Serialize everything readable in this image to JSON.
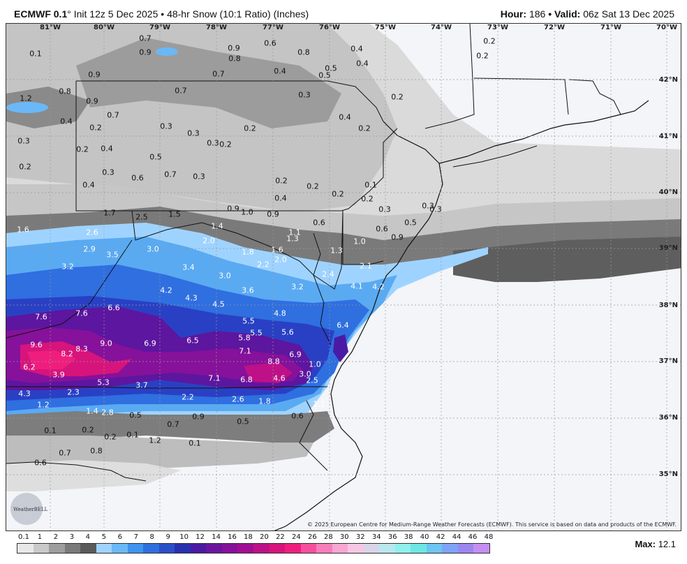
{
  "header": {
    "model": "ECMWF 0.1",
    "degree": "°",
    "init": "Init 12z 5 Dec 2025",
    "sep": "•",
    "product": "48-hr Snow (10:1 Ratio) (Inches)",
    "hour_label": "Hour:",
    "hour": "186",
    "valid_label": "Valid:",
    "valid": "06z Sat 13 Dec 2025"
  },
  "longitudes": [
    "81°W",
    "80°W",
    "79°W",
    "78°W",
    "77°W",
    "76°W",
    "75°W",
    "74°W",
    "73°W",
    "72°W",
    "71°W",
    "70°W"
  ],
  "latitudes": [
    "42°N",
    "41°N",
    "40°N",
    "39°N",
    "38°N",
    "37°N",
    "36°N",
    "35°N"
  ],
  "values": [
    [
      "0.1",
      50,
      76
    ],
    [
      "0.7",
      207,
      54
    ],
    [
      "0.9",
      207,
      74
    ],
    [
      "0.9",
      334,
      68
    ],
    [
      "0.6",
      386,
      61
    ],
    [
      "0.8",
      335,
      83
    ],
    [
      "0.8",
      434,
      74
    ],
    [
      "0.4",
      510,
      69
    ],
    [
      "0.4",
      518,
      90
    ],
    [
      "0.2",
      700,
      58
    ],
    [
      "0.2",
      690,
      79
    ],
    [
      "0.9",
      134,
      106
    ],
    [
      "0.7",
      312,
      105
    ],
    [
      "0.4",
      400,
      101
    ],
    [
      "0.5",
      464,
      107
    ],
    [
      "0.5",
      473,
      97
    ],
    [
      "1.2",
      36,
      140
    ],
    [
      "0.8",
      92,
      130
    ],
    [
      "0.7",
      258,
      129
    ],
    [
      "0.3",
      435,
      135
    ],
    [
      "0.2",
      568,
      138
    ],
    [
      "0.9",
      131,
      144
    ],
    [
      "0.7",
      161,
      164
    ],
    [
      "0.4",
      94,
      173
    ],
    [
      "0.2",
      136,
      182
    ],
    [
      "0.3",
      237,
      180
    ],
    [
      "0.3",
      276,
      190
    ],
    [
      "0.2",
      357,
      183
    ],
    [
      "0.4",
      493,
      167
    ],
    [
      "0.2",
      521,
      183
    ],
    [
      "0.3",
      33,
      201
    ],
    [
      "0.2",
      117,
      213
    ],
    [
      "0.4",
      152,
      212
    ],
    [
      "0.3",
      304,
      204
    ],
    [
      "0.2",
      322,
      206
    ],
    [
      "0.5",
      222,
      224
    ],
    [
      "0.2",
      35,
      238
    ],
    [
      "0.3",
      154,
      246
    ],
    [
      "0.6",
      196,
      254
    ],
    [
      "0.7",
      243,
      249
    ],
    [
      "0.3",
      284,
      252
    ],
    [
      "0.2",
      402,
      258
    ],
    [
      "0.2",
      447,
      266
    ],
    [
      "0.1",
      530,
      264
    ],
    [
      "0.4",
      126,
      264
    ],
    [
      "0.4",
      401,
      283
    ],
    [
      "0.2",
      483,
      277
    ],
    [
      "0.2",
      525,
      284
    ],
    [
      "1.7",
      156,
      304
    ],
    [
      "2.5",
      202,
      310
    ],
    [
      "1.5",
      249,
      306
    ],
    [
      "0.9",
      333,
      298
    ],
    [
      "1.0",
      353,
      303
    ],
    [
      "0.9",
      390,
      306
    ],
    [
      "0.3",
      550,
      299
    ],
    [
      "0.3",
      612,
      294
    ],
    [
      "0.3",
      623,
      299
    ],
    [
      "1.6",
      32,
      328
    ],
    [
      "2.6",
      131,
      332
    ],
    [
      "1.4",
      310,
      323
    ],
    [
      "2.0",
      298,
      344
    ],
    [
      "1.1",
      421,
      332
    ],
    [
      "1.3",
      418,
      341
    ],
    [
      "0.6",
      546,
      327
    ],
    [
      "0.5",
      587,
      318
    ],
    [
      "0.9",
      568,
      339
    ],
    [
      "0.6",
      456,
      318
    ],
    [
      "2.9",
      127,
      356
    ],
    [
      "3.5",
      160,
      364
    ],
    [
      "3.0",
      218,
      356
    ],
    [
      "1.8",
      354,
      360
    ],
    [
      "1.6",
      396,
      357
    ],
    [
      "2.0",
      401,
      371
    ],
    [
      "1.3",
      481,
      358
    ],
    [
      "1.0",
      514,
      345
    ],
    [
      "3.2",
      96,
      381
    ],
    [
      "3.4",
      269,
      382
    ],
    [
      "3.0",
      321,
      394
    ],
    [
      "2.2",
      376,
      378
    ],
    [
      "2.4",
      469,
      392
    ],
    [
      "2.1",
      523,
      380
    ],
    [
      "4.2",
      237,
      415
    ],
    [
      "4.3",
      273,
      426
    ],
    [
      "3.6",
      354,
      415
    ],
    [
      "3.2",
      425,
      410
    ],
    [
      "4.1",
      510,
      409
    ],
    [
      "4.2",
      541,
      410
    ],
    [
      "7.6",
      58,
      453
    ],
    [
      "7.6",
      116,
      448
    ],
    [
      "6.6",
      162,
      440
    ],
    [
      "4.5",
      312,
      435
    ],
    [
      "4.8",
      400,
      448
    ],
    [
      "5.5",
      355,
      459
    ],
    [
      "5.5",
      366,
      476
    ],
    [
      "5.6",
      411,
      475
    ],
    [
      "6.4",
      490,
      465
    ],
    [
      "9.6",
      51,
      493
    ],
    [
      "8.2",
      95,
      506
    ],
    [
      "8.3",
      116,
      499
    ],
    [
      "9.0",
      151,
      491
    ],
    [
      "6.9",
      214,
      491
    ],
    [
      "6.5",
      275,
      487
    ],
    [
      "5.8",
      349,
      483
    ],
    [
      "7.1",
      350,
      502
    ],
    [
      "6.9",
      422,
      507
    ],
    [
      "8.8",
      391,
      517
    ],
    [
      "6.2",
      41,
      525
    ],
    [
      "3.9",
      83,
      536
    ],
    [
      "5.3",
      147,
      547
    ],
    [
      "3.7",
      202,
      551
    ],
    [
      "7.1",
      306,
      541
    ],
    [
      "6.8",
      352,
      543
    ],
    [
      "4.6",
      399,
      541
    ],
    [
      "3.0",
      436,
      535
    ],
    [
      "2.5",
      446,
      544
    ],
    [
      "1.0",
      450,
      521
    ],
    [
      "4.3",
      34,
      563
    ],
    [
      "2.3",
      104,
      561
    ],
    [
      "2.2",
      268,
      568
    ],
    [
      "2.6",
      340,
      571
    ],
    [
      "1.8",
      378,
      574
    ],
    [
      "1.1",
      456,
      578
    ],
    [
      "1.2",
      61,
      579
    ],
    [
      "1.4",
      131,
      588
    ],
    [
      "2.8",
      153,
      590
    ],
    [
      "0.5",
      193,
      594
    ],
    [
      "0.9",
      283,
      596
    ],
    [
      "0.5",
      347,
      603
    ],
    [
      "0.6",
      425,
      595
    ],
    [
      "0.7",
      247,
      607
    ],
    [
      "0.1",
      71,
      616
    ],
    [
      "0.2",
      125,
      615
    ],
    [
      "0.2",
      157,
      625
    ],
    [
      "0.1",
      189,
      622
    ],
    [
      "1.2",
      221,
      630
    ],
    [
      "0.1",
      278,
      634
    ],
    [
      "0.7",
      92,
      648
    ],
    [
      "0.8",
      137,
      645
    ],
    [
      "0.6",
      57,
      662
    ]
  ],
  "light_values": [
    "1.7",
    "2.5",
    "1.5",
    "2.6",
    "2.9",
    "3.5",
    "3.0",
    "3.2",
    "3.4",
    "4.2",
    "4.3",
    "3.6",
    "3.2",
    "4.1",
    "4.2",
    "7.6",
    "6.6",
    "4.5",
    "4.8",
    "5.5",
    "5.6",
    "6.4",
    "9.6",
    "8.2",
    "8.3",
    "9.0",
    "6.9",
    "6.5",
    "5.8",
    "7.1",
    "8.8",
    "6.2",
    "3.9",
    "5.3",
    "3.7",
    "6.8",
    "4.6",
    "3.0",
    "2.5",
    "1.0",
    "4.3",
    "2.3",
    "2.2",
    "2.6",
    "1.8",
    "1.2",
    "1.4",
    "2.8",
    "2.4",
    "2.1",
    "2.0",
    "1.6",
    "1.4",
    "1.8",
    "1.3",
    "1.1"
  ],
  "legend": {
    "ticks": [
      "0.1",
      "1",
      "2",
      "3",
      "4",
      "5",
      "6",
      "7",
      "8",
      "9",
      "10",
      "12",
      "14",
      "16",
      "18",
      "20",
      "22",
      "24",
      "26",
      "28",
      "30",
      "32",
      "34",
      "36",
      "38",
      "40",
      "42",
      "44",
      "46",
      "48"
    ],
    "colors": [
      "#e8e8e8",
      "#c9c9c9",
      "#9d9d9d",
      "#7a7a7a",
      "#5a5a5a",
      "#9fd3ff",
      "#6ab8f7",
      "#3d94ef",
      "#2c6fe0",
      "#2a4fc9",
      "#2730b0",
      "#4b1aa4",
      "#6a159f",
      "#86119a",
      "#a10e94",
      "#be1188",
      "#d7147c",
      "#ef1e7e",
      "#f64f9c",
      "#f87dba",
      "#f9a6d2",
      "#f6c7e3",
      "#d9d5e8",
      "#b8e7ee",
      "#8ff0ec",
      "#6ce7e3",
      "#6cc5f3",
      "#7fa3f6",
      "#9b86f1",
      "#c58ef3"
    ],
    "max_label": "Max:",
    "max_value": "12.1"
  },
  "copyright": "© 2025 European Centre for Medium-Range Weather Forecasts (ECMWF). This service is based on data and products of the ECMWF.",
  "logo_text": "WeatherBELL"
}
